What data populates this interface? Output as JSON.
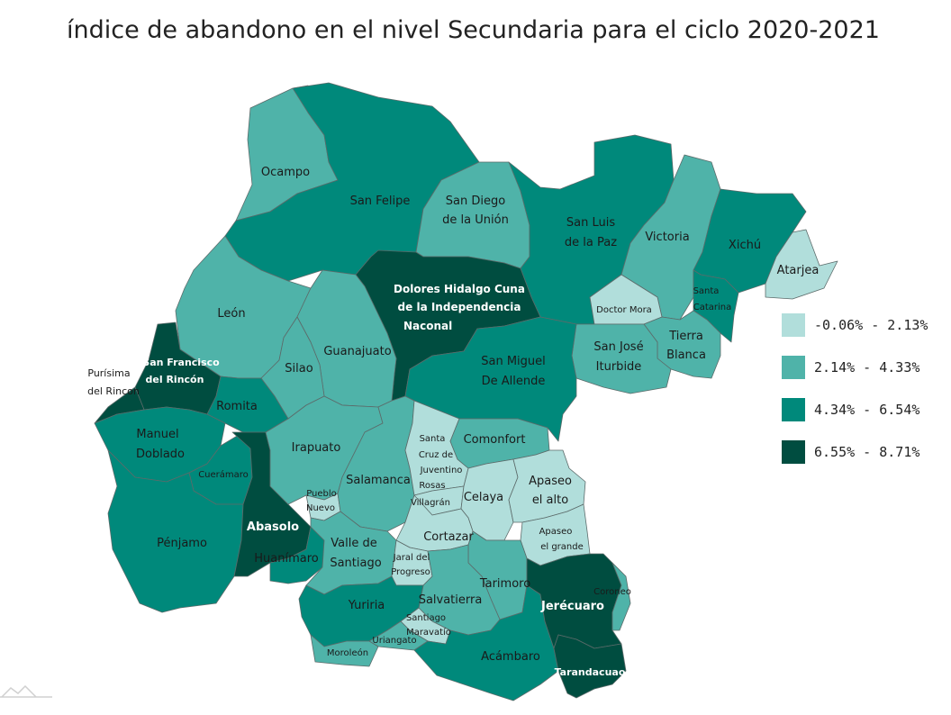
{
  "title": "índice de abandono en el nivel Secundaria para el ciclo 2020-2021",
  "colors": {
    "c1": "#b1dedb",
    "c2": "#4fb3a9",
    "c3": "#00897b",
    "c4": "#004d40",
    "border": "#5c6b6a"
  },
  "legend": [
    {
      "label": "-0.06% - 2.13%",
      "color": "#b1dedb"
    },
    {
      "label": "2.14% - 4.33%",
      "color": "#4fb3a9"
    },
    {
      "label": "4.34% - 6.54%",
      "color": "#00897b"
    },
    {
      "label": "6.55% - 8.71%",
      "color": "#004d40"
    }
  ],
  "municipalities": [
    {
      "name": "Ocampo",
      "class": 2
    },
    {
      "name": "San Felipe",
      "class": 3
    },
    {
      "name": "San Diego de la Unión",
      "class": 2
    },
    {
      "name": "San Luis de la Paz",
      "class": 3
    },
    {
      "name": "Victoria",
      "class": 2
    },
    {
      "name": "Xichú",
      "class": 3
    },
    {
      "name": "Atarjea",
      "class": 1
    },
    {
      "name": "Dolores Hidalgo Cuna de la Independencia Naconal",
      "class": 4
    },
    {
      "name": "Doctor Mora",
      "class": 1
    },
    {
      "name": "Santa Catarina",
      "class": 3
    },
    {
      "name": "Tierra Blanca",
      "class": 2
    },
    {
      "name": "San José Iturbide",
      "class": 2
    },
    {
      "name": "San Miguel De Allende",
      "class": 3
    },
    {
      "name": "León",
      "class": 2
    },
    {
      "name": "Guanajuato",
      "class": 2
    },
    {
      "name": "Silao",
      "class": 2
    },
    {
      "name": "San Francisco del Rincón",
      "class": 4
    },
    {
      "name": "Purísima del Rincon",
      "class": 4
    },
    {
      "name": "Romita",
      "class": 3
    },
    {
      "name": "Manuel Doblado",
      "class": 3
    },
    {
      "name": "Cuerámaro",
      "class": 3
    },
    {
      "name": "Irapuato",
      "class": 2
    },
    {
      "name": "Salamanca",
      "class": 2
    },
    {
      "name": "Santa Cruz de Juventino Rosas",
      "class": 1
    },
    {
      "name": "Comonfort",
      "class": 2
    },
    {
      "name": "Apaseo el alto",
      "class": 1
    },
    {
      "name": "Celaya",
      "class": 1
    },
    {
      "name": "Villagrán",
      "class": 1
    },
    {
      "name": "Pueblo Nuevo",
      "class": 1
    },
    {
      "name": "Abasolo",
      "class": 4
    },
    {
      "name": "Huanímaro",
      "class": 3
    },
    {
      "name": "Pénjamo",
      "class": 3
    },
    {
      "name": "Valle de Santiago",
      "class": 2
    },
    {
      "name": "Cortazar",
      "class": 1
    },
    {
      "name": "Apaseo el grande",
      "class": 1
    },
    {
      "name": "Jaral del Progreso",
      "class": 1
    },
    {
      "name": "Tarimoro",
      "class": 2
    },
    {
      "name": "Jerécuaro",
      "class": 4
    },
    {
      "name": "Coroneo",
      "class": 2
    },
    {
      "name": "Salvatierra",
      "class": 2
    },
    {
      "name": "Yuriria",
      "class": 3
    },
    {
      "name": "Santiago Maravatío",
      "class": 1
    },
    {
      "name": "Uriangato",
      "class": 2
    },
    {
      "name": "Moroleón",
      "class": 2
    },
    {
      "name": "Acámbaro",
      "class": 3
    },
    {
      "name": "Tarandacuao",
      "class": 4
    }
  ],
  "labels": {
    "ocampo": "Ocampo",
    "san_felipe": "San Felipe",
    "san_diego_1": "San Diego",
    "san_diego_2": "de la Unión",
    "slp_1": "San Luis",
    "slp_2": "de la Paz",
    "victoria": "Victoria",
    "xichu": "Xichú",
    "atarjea": "Atarjea",
    "dolores_1": "Dolores Hidalgo Cuna",
    "dolores_2": "de la Independencia",
    "dolores_3": "Naconal",
    "doctor_mora": "Doctor Mora",
    "santa_catarina_1": "Santa",
    "santa_catarina_2": "Catarina",
    "tierra_blanca_1": "Tierra",
    "tierra_blanca_2": "Blanca",
    "sji_1": "San José",
    "sji_2": "Iturbide",
    "sma_1": "San Miguel",
    "sma_2": "De Allende",
    "leon": "León",
    "guanajuato": "Guanajuato",
    "silao": "Silao",
    "sfr_1": "San Francisco",
    "sfr_2": "del Rincón",
    "purisima_1": "Purísima",
    "purisima_2": "del Rincon",
    "romita": "Romita",
    "manuel_1": "Manuel",
    "manuel_2": "Doblado",
    "cueramaro": "Cuerámaro",
    "irapuato": "Irapuato",
    "salamanca": "Salamanca",
    "santa_cruz_1": "Santa",
    "santa_cruz_2": "Cruz de",
    "santa_cruz_3": "Juventino",
    "santa_cruz_4": "Rosas",
    "comonfort": "Comonfort",
    "apaseo_alto_1": "Apaseo",
    "apaseo_alto_2": "el alto",
    "celaya": "Celaya",
    "villagran": "Villagrán",
    "pueblo_1": "Pueblo",
    "pueblo_2": "Nuevo",
    "abasolo": "Abasolo",
    "huanimaro": "Huanímaro",
    "penjamo": "Pénjamo",
    "valle_1": "Valle de",
    "valle_2": "Santiago",
    "cortazar": "Cortazar",
    "apaseo_grande_1": "Apaseo",
    "apaseo_grande_2": "el grande",
    "jaral_1": "Jaral del",
    "jaral_2": "Progreso",
    "tarimoro": "Tarimoro",
    "jerecuaro": "Jerécuaro",
    "coroneo": "Coroneo",
    "salvatierra": "Salvatierra",
    "yuriria": "Yuriria",
    "santiago_1": "Santiago",
    "santiago_2": "Maravatío",
    "uriangato": "Uriangato",
    "moroleon": "Moroleón",
    "acambaro": "Acámbaro",
    "tarandacuao": "Tarandacuao"
  }
}
